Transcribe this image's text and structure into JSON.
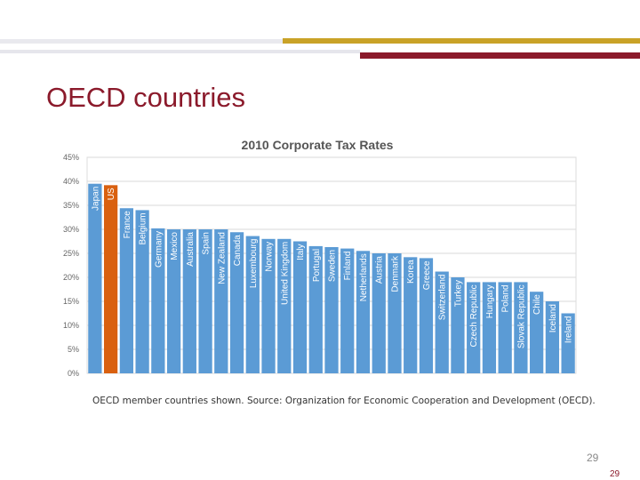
{
  "slide": {
    "title": "OECD countries",
    "caption": "OECD member countries shown. Source: Organization for Economic Cooperation and Development (OECD).",
    "page_number": "29",
    "page_number_footer": "29"
  },
  "colors": {
    "title": "#8b1a2b",
    "bar_default": "#5b9bd5",
    "bar_highlight": "#d9600f",
    "band_gold": "#c9a227",
    "band_red": "#8b1a2b",
    "grid": "#d9d9d9"
  },
  "chart_data": {
    "type": "bar",
    "title": "2010 Corporate Tax Rates",
    "xlabel": "",
    "ylabel": "",
    "ylim": [
      0,
      45
    ],
    "yticks": [
      "45%",
      "40%",
      "35%",
      "30%",
      "25%",
      "20%",
      "15%",
      "10%",
      "5%",
      "0%"
    ],
    "grid": true,
    "highlight": "US",
    "categories": [
      "Japan",
      "US",
      "France",
      "Belgium",
      "Germany",
      "Mexico",
      "Australia",
      "Spain",
      "New Zealand",
      "Canada",
      "Luxembourg",
      "Norway",
      "United Kingdom",
      "Italy",
      "Portugal",
      "Sweden",
      "Finland",
      "Netherlands",
      "Austria",
      "Denmark",
      "Korea",
      "Greece",
      "Switzerland",
      "Turkey",
      "Czech Republic",
      "Hungary",
      "Poland",
      "Slovak Republic",
      "Chile",
      "Iceland",
      "Ireland"
    ],
    "values": [
      39.5,
      39.2,
      34.4,
      34.0,
      30.2,
      30.0,
      30.0,
      30.0,
      30.0,
      29.4,
      28.6,
      28.0,
      28.0,
      27.5,
      26.5,
      26.3,
      26.0,
      25.5,
      25.0,
      25.0,
      24.2,
      24.0,
      21.2,
      20.0,
      19.0,
      19.0,
      19.0,
      19.0,
      17.0,
      15.0,
      12.5
    ]
  }
}
